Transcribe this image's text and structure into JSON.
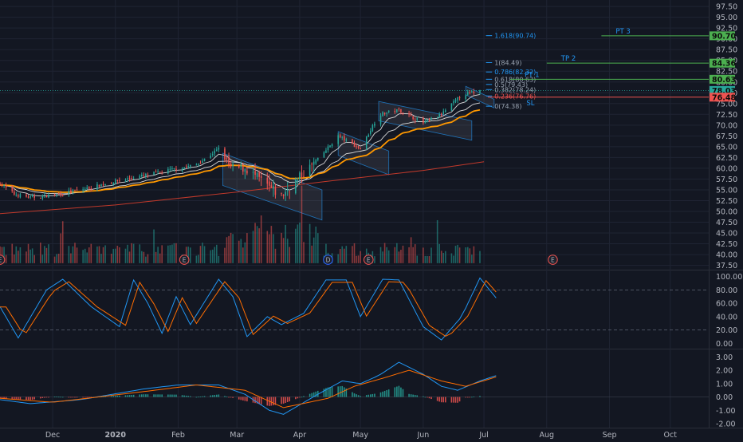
{
  "colors": {
    "background": "#131722",
    "grid": "#1f2433",
    "separator": "#2a2e39",
    "bull": "#26a69a",
    "bear": "#ef5350",
    "ema_fast": "#d8d8d8",
    "ema_slow": "#ff9800",
    "sma_long": "#c0392b",
    "stoch_k": "#2196f3",
    "stoch_d": "#ff6d00",
    "macd_line": "#2196f3",
    "signal_line": "#ff6d00",
    "hist_pos": "#26a69a",
    "hist_neg": "#ef5350",
    "fib_blue": "#2196f3",
    "fib_text": "#9aa4b2",
    "target_green": "#4caf50",
    "stop_red": "#ef5350",
    "axis_text": "#b2b5be",
    "label_teal": "#4a7f99"
  },
  "price_axis": {
    "ticks": [
      "97.50",
      "95.00",
      "92.50",
      "90.00",
      "87.50",
      "85.00",
      "82.50",
      "80.00",
      "77.50",
      "75.00",
      "72.50",
      "70.00",
      "67.50",
      "65.00",
      "62.50",
      "60.00",
      "57.50",
      "55.00",
      "52.50",
      "50.00",
      "47.50",
      "45.00",
      "42.50",
      "40.00",
      "37.50"
    ],
    "badges": [
      {
        "text": "90.70",
        "value": 90.7,
        "color": "#4caf50"
      },
      {
        "text": "84.36",
        "value": 84.36,
        "color": "#4caf50"
      },
      {
        "text": "80.63",
        "value": 80.63,
        "color": "#4caf50"
      },
      {
        "text": "78.03",
        "value": 78.03,
        "color": "#26a69a"
      },
      {
        "text": "76.48",
        "value": 76.48,
        "color": "#ef5350"
      }
    ]
  },
  "stoch_axis": {
    "ticks": [
      "100.00",
      "80.00",
      "60.00",
      "40.00",
      "20.00",
      "0.00"
    ]
  },
  "macd_axis": {
    "ticks": [
      "3.00",
      "2.00",
      "1.00",
      "0.00",
      "-1.00",
      "-2.00"
    ]
  },
  "time_axis": {
    "labels": [
      "Dec",
      "2020",
      "Feb",
      "Mar",
      "Apr",
      "May",
      "Jun",
      "Jul",
      "Aug",
      "Sep",
      "Oct"
    ]
  },
  "fib_levels": [
    {
      "text": "1.618(90.74)",
      "value": 90.74
    },
    {
      "text": "1(84.49)",
      "value": 84.49
    },
    {
      "text": "0.786(82.32)",
      "value": 82.32
    },
    {
      "text": "0.618(80.63)",
      "value": 80.63
    },
    {
      "text": "0.5(79.43)",
      "value": 79.43
    },
    {
      "text": "0.382(78.24)",
      "value": 78.24
    },
    {
      "text": "0.236(76.76)",
      "value": 76.76
    },
    {
      "text": "0(74.38)",
      "value": 74.38
    }
  ],
  "targets": [
    {
      "text": "PT 3",
      "value": 90.7
    },
    {
      "text": "TP 2",
      "value": 84.36
    },
    {
      "text": "PT 1",
      "value": 80.63
    }
  ],
  "stop": {
    "text": "SL",
    "value": 76.48
  },
  "events": [
    {
      "text": "E",
      "date": "2019-11-05"
    },
    {
      "text": "E",
      "date": "2020-02-04"
    },
    {
      "text": "D",
      "date": "2020-04-15"
    },
    {
      "text": "E",
      "date": "2020-05-05"
    },
    {
      "text": "E",
      "date": "2020-08-04"
    }
  ],
  "chart_data": {
    "type": "candlestick",
    "xlim": [
      "2019-11-05",
      "2020-10-20"
    ],
    "ylim_price": [
      36.5,
      99
    ],
    "ylim_stoch": [
      -8,
      108
    ],
    "ylim_macd": [
      -2.3,
      3.5
    ],
    "price_path": [
      [
        "2019-11-05",
        56.5
      ],
      [
        "2019-11-12",
        54.0
      ],
      [
        "2019-11-20",
        53.2
      ],
      [
        "2019-12-01",
        53.8
      ],
      [
        "2019-12-15",
        55.0
      ],
      [
        "2020-01-01",
        57.0
      ],
      [
        "2020-01-15",
        58.3
      ],
      [
        "2020-02-01",
        60.0
      ],
      [
        "2020-02-10",
        60.8
      ],
      [
        "2020-02-21",
        64.5
      ],
      [
        "2020-02-27",
        60.0
      ],
      [
        "2020-03-05",
        60.0
      ],
      [
        "2020-03-12",
        57.5
      ],
      [
        "2020-03-17",
        55.5
      ],
      [
        "2020-03-23",
        53.5
      ],
      [
        "2020-04-01",
        58.0
      ],
      [
        "2020-04-10",
        62.0
      ],
      [
        "2020-04-20",
        67.5
      ],
      [
        "2020-05-01",
        64.5
      ],
      [
        "2020-05-10",
        72.5
      ],
      [
        "2020-05-20",
        73.5
      ],
      [
        "2020-06-01",
        70.5
      ],
      [
        "2020-06-10",
        72.5
      ],
      [
        "2020-06-20",
        77.0
      ],
      [
        "2020-06-29",
        78.0
      ]
    ],
    "stoch_k_path": [
      [
        "2019-11-05",
        55
      ],
      [
        "2019-11-14",
        8
      ],
      [
        "2019-11-28",
        80
      ],
      [
        "2019-12-06",
        96
      ],
      [
        "2019-12-20",
        55
      ],
      [
        "2020-01-03",
        25
      ],
      [
        "2020-01-10",
        95
      ],
      [
        "2020-01-17",
        60
      ],
      [
        "2020-01-24",
        15
      ],
      [
        "2020-01-31",
        70
      ],
      [
        "2020-02-07",
        28
      ],
      [
        "2020-02-21",
        96
      ],
      [
        "2020-02-28",
        70
      ],
      [
        "2020-03-06",
        10
      ],
      [
        "2020-03-16",
        40
      ],
      [
        "2020-03-23",
        28
      ],
      [
        "2020-04-03",
        45
      ],
      [
        "2020-04-14",
        95
      ],
      [
        "2020-04-24",
        95
      ],
      [
        "2020-05-01",
        40
      ],
      [
        "2020-05-12",
        96
      ],
      [
        "2020-05-20",
        95
      ],
      [
        "2020-06-01",
        25
      ],
      [
        "2020-06-10",
        5
      ],
      [
        "2020-06-20",
        40
      ],
      [
        "2020-06-29",
        98
      ],
      [
        "2020-07-07",
        68
      ]
    ],
    "macd_path": [
      [
        "2019-11-05",
        -0.2
      ],
      [
        "2019-11-20",
        -0.5
      ],
      [
        "2019-12-15",
        -0.2
      ],
      [
        "2020-01-15",
        0.6
      ],
      [
        "2020-02-01",
        0.9
      ],
      [
        "2020-02-21",
        0.9
      ],
      [
        "2020-03-05",
        0.2
      ],
      [
        "2020-03-17",
        -1.0
      ],
      [
        "2020-03-24",
        -1.3
      ],
      [
        "2020-04-10",
        0.2
      ],
      [
        "2020-04-22",
        1.2
      ],
      [
        "2020-05-01",
        1.0
      ],
      [
        "2020-05-10",
        1.6
      ],
      [
        "2020-05-20",
        2.6
      ],
      [
        "2020-06-01",
        1.7
      ],
      [
        "2020-06-10",
        0.8
      ],
      [
        "2020-06-18",
        0.5
      ],
      [
        "2020-06-29",
        1.2
      ],
      [
        "2020-07-07",
        1.6
      ]
    ],
    "signal_path": [
      [
        "2019-11-05",
        -0.1
      ],
      [
        "2019-12-01",
        -0.4
      ],
      [
        "2020-01-15",
        0.4
      ],
      [
        "2020-02-10",
        0.9
      ],
      [
        "2020-03-05",
        0.5
      ],
      [
        "2020-03-24",
        -0.8
      ],
      [
        "2020-04-15",
        -0.1
      ],
      [
        "2020-04-28",
        0.8
      ],
      [
        "2020-05-12",
        1.4
      ],
      [
        "2020-05-25",
        2.0
      ],
      [
        "2020-06-10",
        1.2
      ],
      [
        "2020-06-22",
        0.8
      ],
      [
        "2020-07-07",
        1.5
      ]
    ]
  }
}
